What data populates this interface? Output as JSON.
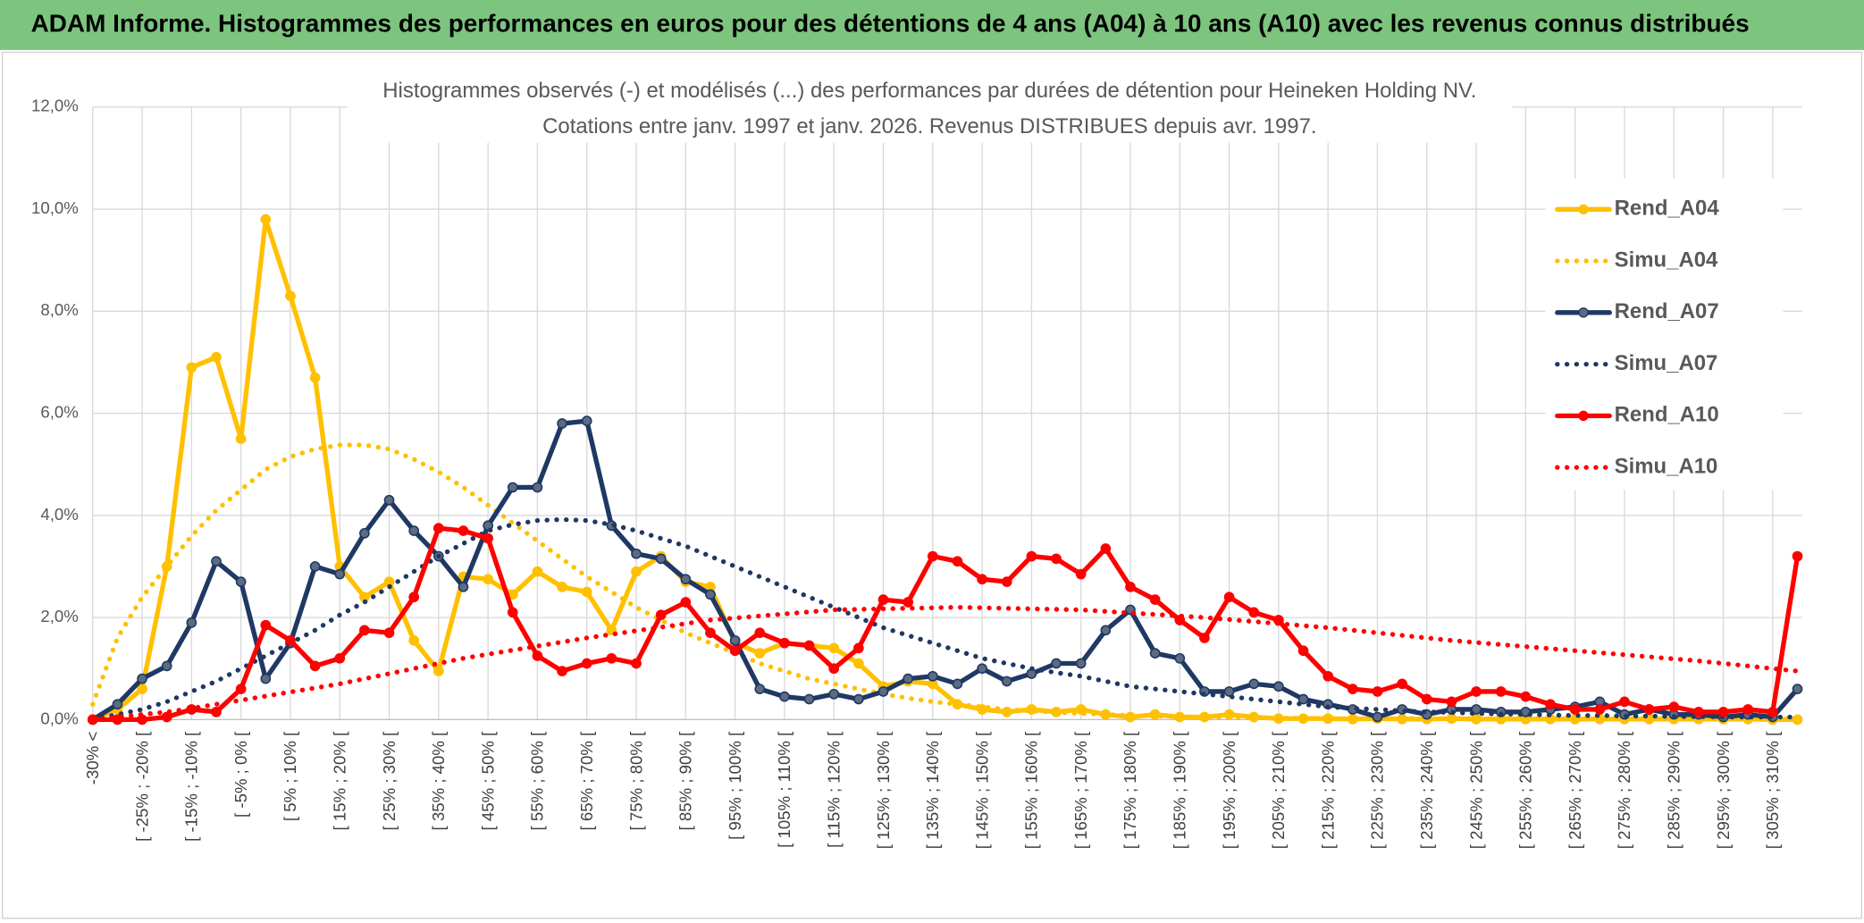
{
  "header": {
    "title": "ADAM Informe. Histogrammes des performances en euros pour des détentions de 4 ans (A04) à 10 ans (A10) avec les revenus connus distribués"
  },
  "chart_data": {
    "type": "line",
    "title": "Histogrammes observés (-) et modélisés (...) des performances par durées de détention pour Heineken Holding NV.",
    "subtitle": "Cotations entre janv. 1997 et janv. 2026. Revenus DISTRIBUES depuis avr. 1997.",
    "categories": [
      "-30% <",
      null,
      "[ -25% ; -20% [",
      null,
      "[ -15% ; -10% [",
      null,
      "[ -5% ; 0% [",
      null,
      "[ 5% ; 10% [",
      null,
      "[ 15% ; 20% [",
      null,
      "[ 25% ; 30% [",
      null,
      "[ 35% ; 40% [",
      null,
      "[ 45% ; 50% [",
      null,
      "[ 55% ; 60% [",
      null,
      "[ 65% ; 70% [",
      null,
      "[ 75% ; 80% [",
      null,
      "[ 85% ; 90% [",
      null,
      "[ 95% ; 100% [",
      null,
      "[ 105% ; 110% [",
      null,
      "[ 115% ; 120% [",
      null,
      "[ 125% ; 130% [",
      null,
      "[ 135% ; 140% [",
      null,
      "[ 145% ; 150% [",
      null,
      "[ 155% ; 160% [",
      null,
      "[ 165% ; 170% [",
      null,
      "[ 175% ; 180% [",
      null,
      "[ 185% ; 190% [",
      null,
      "[ 195% ; 200% [",
      null,
      "[ 205% ; 210% [",
      null,
      "[ 215% ; 220% [",
      null,
      "[ 225% ; 230% [",
      null,
      "[ 235% ; 240% [",
      null,
      "[ 245% ; 250% [",
      null,
      "[ 255% ; 260% [",
      null,
      "[ 265% ; 270% [",
      null,
      "[ 275% ; 280% [",
      null,
      "[ 285% ; 290% [",
      null,
      "[ 295% ; 300% [",
      null,
      "[ 305% ; 310% [",
      null
    ],
    "series": [
      {
        "name": "Rend_A04",
        "color": "#FFC000",
        "style": "solid",
        "marker": true,
        "values": [
          0,
          0.2,
          0.6,
          3.0,
          6.9,
          7.1,
          5.5,
          9.8,
          8.3,
          6.7,
          3.0,
          2.4,
          2.7,
          1.55,
          0.95,
          2.8,
          2.75,
          2.45,
          2.9,
          2.6,
          2.5,
          1.75,
          2.9,
          3.2,
          2.7,
          2.6,
          1.5,
          1.3,
          1.5,
          1.45,
          1.4,
          1.1,
          0.65,
          0.75,
          0.7,
          0.3,
          0.2,
          0.15,
          0.2,
          0.15,
          0.2,
          0.1,
          0.05,
          0.1,
          0.05,
          0.05,
          0.1,
          0.05,
          0.02,
          0.02,
          0.02,
          0.01,
          0.02,
          0.01,
          0.01,
          0.02,
          0.01,
          0.01,
          0.01,
          0.01,
          0.01,
          0.01,
          0.01,
          0.01,
          0.01,
          0.01,
          0.01,
          0.01,
          0,
          0
        ]
      },
      {
        "name": "Simu_A04",
        "color": "#FFC000",
        "style": "dotted",
        "marker": false,
        "values": [
          0.3,
          1.6,
          2.4,
          3.0,
          3.6,
          4.1,
          4.5,
          4.9,
          5.15,
          5.3,
          5.38,
          5.38,
          5.3,
          5.1,
          4.85,
          4.55,
          4.2,
          3.85,
          3.5,
          3.15,
          2.8,
          2.5,
          2.2,
          1.95,
          1.7,
          1.5,
          1.3,
          1.1,
          0.95,
          0.8,
          0.7,
          0.6,
          0.5,
          0.42,
          0.35,
          0.3,
          0.25,
          0.2,
          0.17,
          0.14,
          0.12,
          0.1,
          0.08,
          0.07,
          0.06,
          0.05,
          0.04,
          0.04,
          0.03,
          0.03,
          0.02,
          0.02,
          0.02,
          0.02,
          0.02,
          0.02,
          0.02,
          0.02,
          0.02,
          0.02,
          0.02,
          0.02,
          0.02,
          0.02,
          0.02,
          0.02,
          0.02,
          0.02,
          0.02,
          0.02
        ]
      },
      {
        "name": "Rend_A07",
        "color": "#1F3864",
        "style": "solid",
        "marker": true,
        "values": [
          0,
          0.3,
          0.8,
          1.05,
          1.9,
          3.1,
          2.7,
          0.8,
          1.5,
          3.0,
          2.85,
          3.65,
          4.3,
          3.7,
          3.2,
          2.6,
          3.8,
          4.55,
          4.55,
          5.8,
          5.85,
          3.8,
          3.25,
          3.15,
          2.75,
          2.45,
          1.55,
          0.6,
          0.45,
          0.4,
          0.5,
          0.4,
          0.55,
          0.8,
          0.85,
          0.7,
          1.0,
          0.75,
          0.9,
          1.1,
          1.1,
          1.75,
          2.15,
          1.3,
          1.2,
          0.55,
          0.55,
          0.7,
          0.65,
          0.4,
          0.3,
          0.2,
          0.05,
          0.2,
          0.1,
          0.2,
          0.2,
          0.15,
          0.15,
          0.2,
          0.25,
          0.35,
          0.1,
          0.2,
          0.1,
          0.1,
          0.05,
          0.1,
          0.05,
          0.6
        ]
      },
      {
        "name": "Simu_A07",
        "color": "#1F3864",
        "style": "dotted",
        "marker": false,
        "values": [
          0,
          0.1,
          0.2,
          0.35,
          0.55,
          0.75,
          1.0,
          1.25,
          1.5,
          1.75,
          2.05,
          2.3,
          2.6,
          2.9,
          3.2,
          3.45,
          3.7,
          3.82,
          3.9,
          3.92,
          3.9,
          3.82,
          3.7,
          3.55,
          3.4,
          3.2,
          3.0,
          2.8,
          2.6,
          2.4,
          2.2,
          2.0,
          1.8,
          1.65,
          1.5,
          1.35,
          1.2,
          1.1,
          1.0,
          0.92,
          0.85,
          0.75,
          0.65,
          0.6,
          0.55,
          0.5,
          0.45,
          0.4,
          0.35,
          0.3,
          0.25,
          0.22,
          0.2,
          0.17,
          0.15,
          0.14,
          0.12,
          0.11,
          0.1,
          0.09,
          0.08,
          0.08,
          0.07,
          0.07,
          0.06,
          0.06,
          0.05,
          0.05,
          0.05,
          0.05
        ]
      },
      {
        "name": "Rend_A10",
        "color": "#FF0000",
        "style": "solid",
        "marker": true,
        "values": [
          0,
          0,
          0,
          0.05,
          0.2,
          0.15,
          0.6,
          1.85,
          1.55,
          1.05,
          1.2,
          1.75,
          1.7,
          2.4,
          3.75,
          3.7,
          3.55,
          2.1,
          1.25,
          0.95,
          1.1,
          1.2,
          1.1,
          2.05,
          2.3,
          1.7,
          1.35,
          1.7,
          1.5,
          1.45,
          1.0,
          1.4,
          2.35,
          2.3,
          3.2,
          3.1,
          2.75,
          2.7,
          3.2,
          3.15,
          2.85,
          3.35,
          2.6,
          2.35,
          1.95,
          1.6,
          2.4,
          2.1,
          1.95,
          1.35,
          0.85,
          0.6,
          0.55,
          0.7,
          0.4,
          0.35,
          0.55,
          0.55,
          0.45,
          0.3,
          0.2,
          0.2,
          0.35,
          0.2,
          0.25,
          0.15,
          0.15,
          0.2,
          0.15,
          3.2
        ]
      },
      {
        "name": "Simu_A10",
        "color": "#FF0000",
        "style": "dotted",
        "marker": false,
        "values": [
          0,
          0.05,
          0.1,
          0.15,
          0.22,
          0.3,
          0.38,
          0.46,
          0.54,
          0.62,
          0.7,
          0.8,
          0.9,
          1.0,
          1.1,
          1.2,
          1.28,
          1.36,
          1.44,
          1.52,
          1.6,
          1.67,
          1.74,
          1.81,
          1.88,
          1.95,
          1.99,
          2.03,
          2.07,
          2.11,
          2.15,
          2.16,
          2.17,
          2.18,
          2.19,
          2.2,
          2.19,
          2.18,
          2.17,
          2.16,
          2.15,
          2.12,
          2.09,
          2.06,
          2.03,
          2.0,
          1.96,
          1.92,
          1.88,
          1.84,
          1.8,
          1.75,
          1.7,
          1.65,
          1.6,
          1.55,
          1.51,
          1.47,
          1.43,
          1.39,
          1.35,
          1.31,
          1.27,
          1.23,
          1.19,
          1.15,
          1.1,
          1.05,
          1.0,
          0.95
        ]
      }
    ],
    "ylim": [
      0,
      12
    ],
    "yticks": [
      {
        "value": 0,
        "label": "0,0%"
      },
      {
        "value": 2,
        "label": "2,0%"
      },
      {
        "value": 4,
        "label": "4,0%"
      },
      {
        "value": 6,
        "label": "6,0%"
      },
      {
        "value": 8,
        "label": "8,0%"
      },
      {
        "value": 10,
        "label": "10,0%"
      },
      {
        "value": 12,
        "label": "12,0%"
      }
    ],
    "grid": true,
    "legend": "right"
  }
}
